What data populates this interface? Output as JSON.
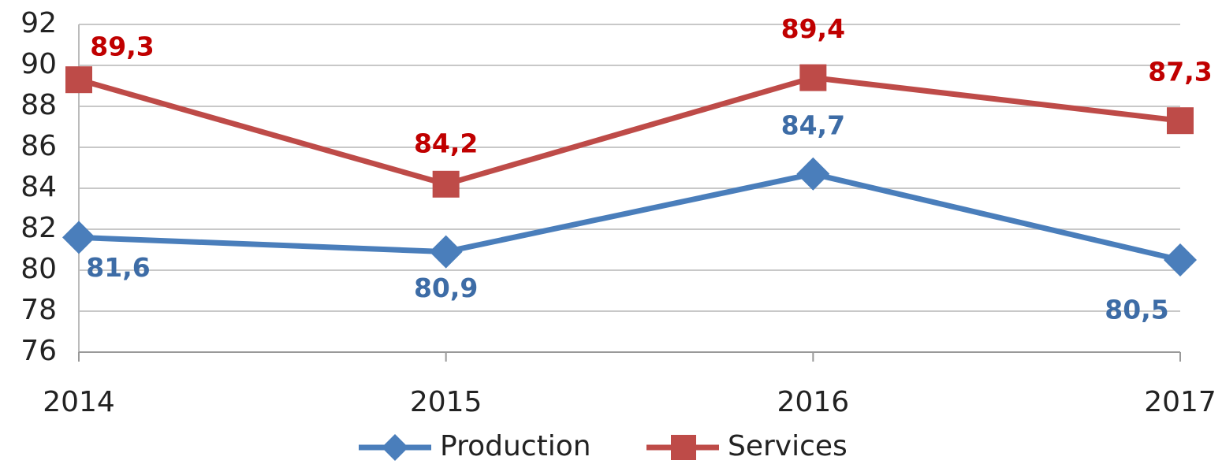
{
  "chart_data": {
    "type": "line",
    "categories": [
      "2014",
      "2015",
      "2016",
      "2017"
    ],
    "series": [
      {
        "name": "Production",
        "color": "#4a7ebb",
        "values": [
          81.6,
          80.9,
          84.7,
          80.5
        ],
        "value_labels": [
          "81,6",
          "80,9",
          "84,7",
          "80,5"
        ],
        "label_color": "#3d6ca6",
        "marker": "diamond"
      },
      {
        "name": "Services",
        "color": "#be4b48",
        "values": [
          89.3,
          84.2,
          89.4,
          87.3
        ],
        "value_labels": [
          "89,3",
          "84,2",
          "89,4",
          "87,3"
        ],
        "label_color": "#c00000",
        "marker": "square"
      }
    ],
    "ylim": [
      76,
      92
    ],
    "yticks": [
      76,
      78,
      80,
      82,
      84,
      86,
      88,
      90,
      92
    ],
    "grid": true,
    "legend": "bottom"
  }
}
